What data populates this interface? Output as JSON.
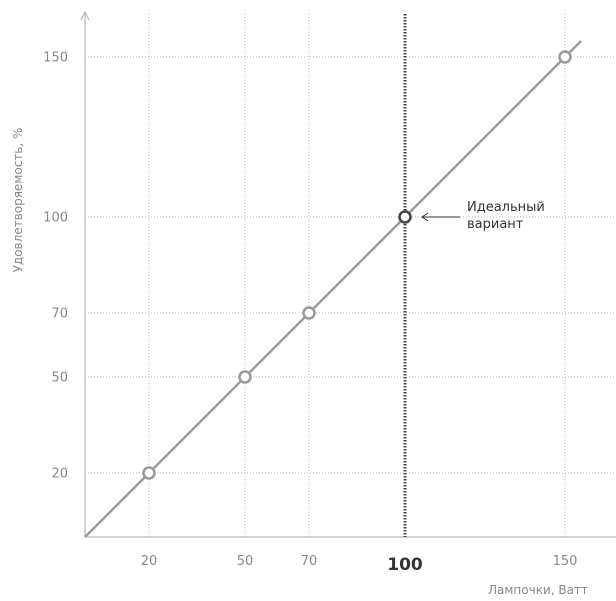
{
  "chart_data": {
    "type": "line",
    "title": "",
    "xlabel": "Лампочки, Ватт",
    "ylabel": "Удовлетворяемость, %",
    "x_ticks": [
      20,
      50,
      70,
      100,
      150
    ],
    "y_ticks": [
      20,
      50,
      70,
      100,
      150
    ],
    "xlim": [
      0,
      160
    ],
    "ylim": [
      0,
      160
    ],
    "grid": true,
    "highlight_x": 100,
    "series": [
      {
        "points": [
          {
            "x": 20,
            "y": 20
          },
          {
            "x": 50,
            "y": 50
          },
          {
            "x": 70,
            "y": 70
          },
          {
            "x": 100,
            "y": 100
          },
          {
            "x": 150,
            "y": 150
          }
        ],
        "line_extent": [
          0,
          155
        ]
      }
    ],
    "annotation": {
      "x": 100,
      "y": 100,
      "line1": "Идеальный",
      "line2": "вариант"
    },
    "colors": {
      "line": "#999999",
      "grid": "#bbbbbb",
      "axis": "#aaaaaa",
      "highlight": "#444444",
      "tick_text": "#888888",
      "highlight_text": "#333333",
      "annotation_text": "#333333"
    }
  }
}
